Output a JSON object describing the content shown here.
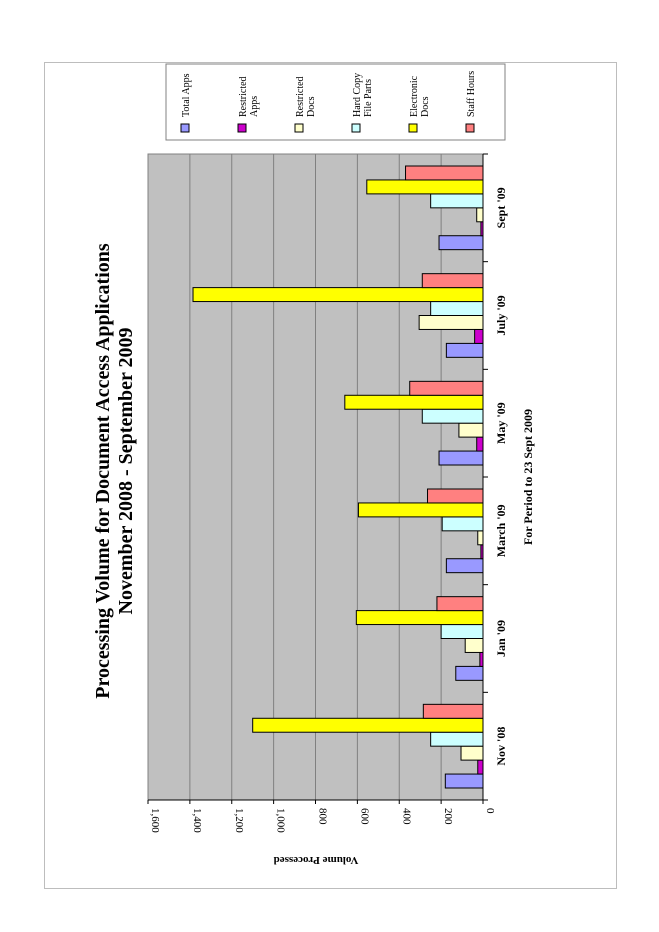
{
  "chart_data": {
    "type": "bar",
    "orientation": "rotated-90-clockwise",
    "title": "Processing Volume for Document Access Applications",
    "subtitle": "November 2008 - September 2009",
    "xlabel": "For Period to 23 Sept 2009",
    "ylabel": "Volume Processed",
    "ylim": [
      0,
      1600
    ],
    "yticks": [
      "0",
      "200",
      "400",
      "600",
      "800",
      "1,000",
      "1,200",
      "1,400",
      "1,600"
    ],
    "grid": true,
    "plot_background": "#c0c0c0",
    "legend_position": "top",
    "categories": [
      "Nov '08",
      "Jan '09",
      "March '09",
      "May '09",
      "July '09",
      "Sept '09"
    ],
    "series": [
      {
        "name": "Total Apps",
        "color": "#9999ff",
        "values": [
          180,
          130,
          175,
          210,
          175,
          210
        ]
      },
      {
        "name": "Restricted Apps",
        "color": "#cc00cc",
        "values": [
          25,
          15,
          10,
          30,
          40,
          10
        ]
      },
      {
        "name": "Restricted Docs",
        "color": "#ffffcc",
        "values": [
          105,
          85,
          25,
          115,
          305,
          30
        ]
      },
      {
        "name": "Hard Copy File Parts",
        "color": "#ccffff",
        "values": [
          250,
          200,
          195,
          290,
          250,
          250
        ]
      },
      {
        "name": "Electronic Docs",
        "color": "#ffff00",
        "values": [
          1100,
          605,
          595,
          660,
          1385,
          555
        ]
      },
      {
        "name": "Staff Hours",
        "color": "#ff8080",
        "values": [
          285,
          220,
          265,
          350,
          290,
          370
        ]
      }
    ],
    "legend_labels": [
      [
        "Total Apps"
      ],
      [
        "Restricted",
        "Apps"
      ],
      [
        "Restricted",
        "Docs"
      ],
      [
        "Hard Copy",
        "File Parts"
      ],
      [
        "Electronic",
        "Docs"
      ],
      [
        "Staff Hours"
      ]
    ]
  }
}
